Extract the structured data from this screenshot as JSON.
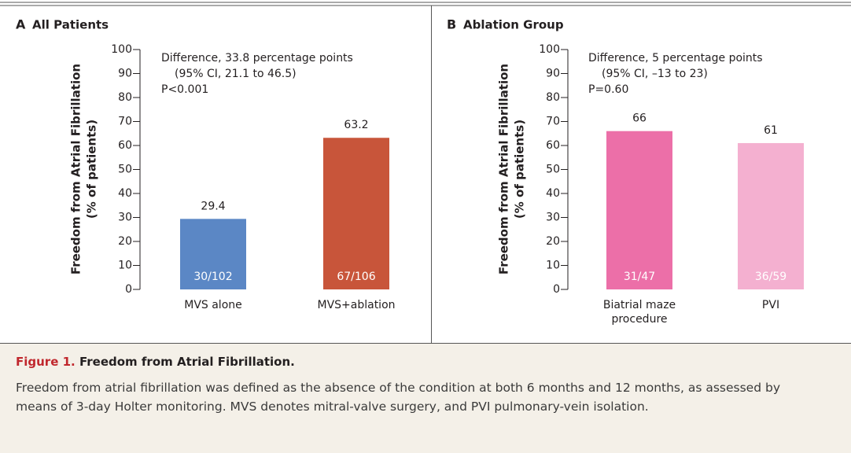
{
  "chart_data": [
    {
      "type": "bar",
      "panel": "A",
      "title": "All Patients",
      "ylabel": [
        "Freedom from Atrial Fibrillation",
        "(% of patients)"
      ],
      "annotation": [
        "Difference, 33.8 percentage points",
        "(95% CI, 21.1 to 46.5)",
        "P<0.001"
      ],
      "categories": [
        "MVS alone",
        "MVS+ablation"
      ],
      "values": [
        29.4,
        63.2
      ],
      "bar_labels": [
        "30/102",
        "67/106"
      ],
      "colors": [
        "#5b87c5",
        "#c8553a"
      ],
      "ylim": [
        0,
        100
      ],
      "yticks": [
        0,
        10,
        20,
        30,
        40,
        50,
        60,
        70,
        80,
        90,
        100
      ]
    },
    {
      "type": "bar",
      "panel": "B",
      "title": "Ablation Group",
      "ylabel": [
        "Freedom from Atrial Fibrillation",
        "(% of patients)"
      ],
      "annotation": [
        "Difference, 5 percentage points",
        "(95% CI, –13 to 23)",
        "P=0.60"
      ],
      "categories": [
        "Biatrial maze procedure",
        "PVI"
      ],
      "values": [
        66,
        61
      ],
      "bar_labels": [
        "31/47",
        "36/59"
      ],
      "colors": [
        "#ec6fa8",
        "#f4b0d0"
      ],
      "ylim": [
        0,
        100
      ],
      "yticks": [
        0,
        10,
        20,
        30,
        40,
        50,
        60,
        70,
        80,
        90,
        100
      ]
    }
  ],
  "caption": {
    "label": "Figure 1.",
    "title": "Freedom from Atrial Fibrillation.",
    "text": "Freedom from atrial fibrillation was defined as the absence of the condition at both 6 months and 12 months, as assessed by means of 3-day Holter monitoring. MVS denotes mitral-valve surgery, and PVI pulmonary-vein isolation."
  }
}
